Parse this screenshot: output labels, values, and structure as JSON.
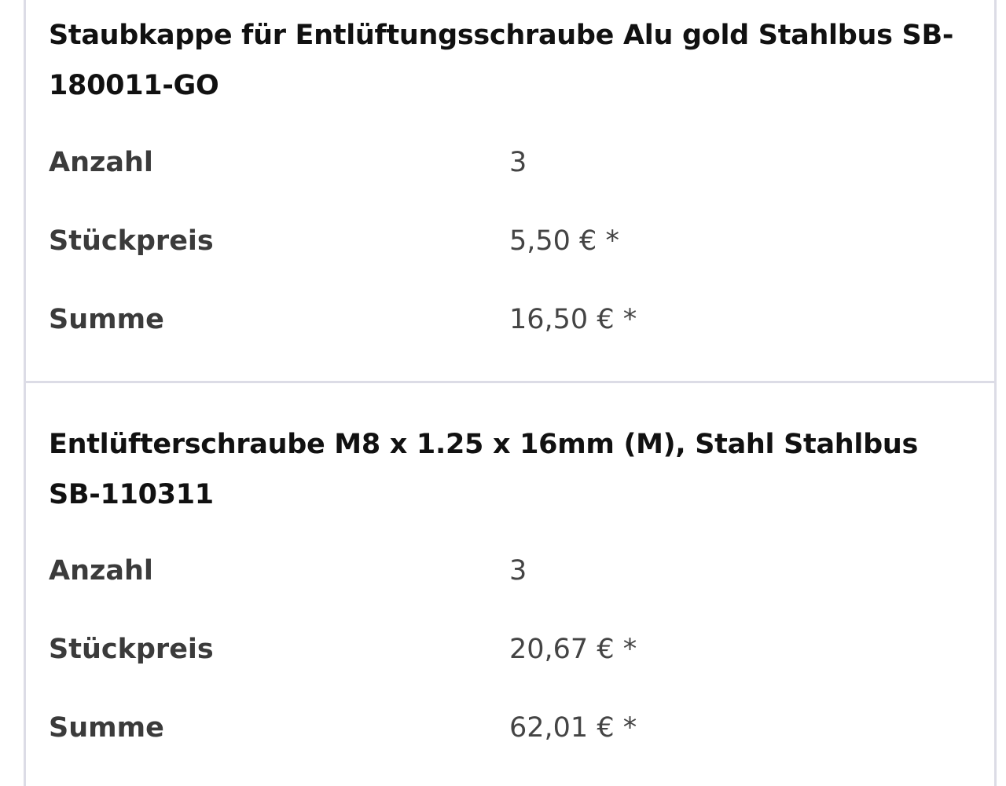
{
  "items": [
    {
      "title": "Staubkappe für Entlüftungsschraube Alu gold Stahlbus SB-180011-GO",
      "rows": [
        {
          "label": "Anzahl",
          "value": "3"
        },
        {
          "label": "Stückpreis",
          "value": "5,50 € *"
        },
        {
          "label": "Summe",
          "value": "16,50 € *"
        }
      ]
    },
    {
      "title": "Entlüfterschraube M8 x 1.25 x 16mm (M), Stahl Stahlbus SB-110311",
      "rows": [
        {
          "label": "Anzahl",
          "value": "3"
        },
        {
          "label": "Stückpreis",
          "value": "20,67 € *"
        },
        {
          "label": "Summe",
          "value": "62,01 € *"
        }
      ]
    }
  ],
  "colors": {
    "border": "#dcdce6",
    "title": "#111111",
    "label": "#3b3b3b",
    "value": "#444444"
  }
}
